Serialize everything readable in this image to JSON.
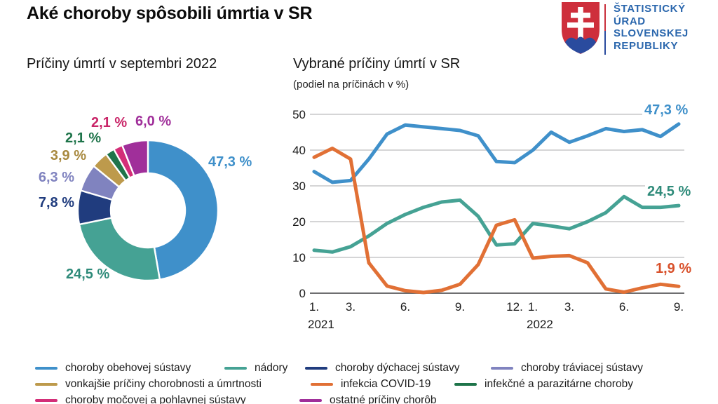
{
  "header": {
    "title": "Aké choroby spôsobili úmrtia v SR",
    "logo": {
      "lines": [
        "ŠTATISTICKÝ",
        "ÚRAD",
        "SLOVENSKEJ",
        "REPUBLIKY"
      ],
      "text_color": "#2B67AD",
      "shield_red": "#CE2F3C",
      "shield_blue": "#2A4B9E"
    }
  },
  "chart_data": [
    {
      "type": "pie",
      "subtype": "donut",
      "title": "Príčiny úmrtí v septembri 2022",
      "unit": "%",
      "slices": [
        {
          "label": "choroby obehovej sústavy",
          "value": 47.3,
          "display": "47,3 %",
          "color": "#3F90CA",
          "label_color": "#3F90CA"
        },
        {
          "label": "nádory",
          "value": 24.5,
          "display": "24,5 %",
          "color": "#45A294",
          "label_color": "#2F8B7A"
        },
        {
          "label": "choroby dýchacej sústavy",
          "value": 7.8,
          "display": "7,8 %",
          "color": "#203C7E",
          "label_color": "#203C7E"
        },
        {
          "label": "choroby tráviacej sústavy",
          "value": 6.3,
          "display": "6,3 %",
          "color": "#8083BF",
          "label_color": "#8083BF"
        },
        {
          "label": "vonkajšie príčiny chorobnosti a úmrtnosti",
          "value": 3.9,
          "display": "3,9 %",
          "color": "#BD9A4C",
          "label_color": "#A8893F"
        },
        {
          "label": "infekčné a parazitárne choroby",
          "value": 2.1,
          "display": "2,1 %",
          "color": "#1E744A",
          "label_color": "#1E744A"
        },
        {
          "label": "choroby močovej a pohlavnej sústavy",
          "value": 2.1,
          "display": "2,1 %",
          "color": "#D32E78",
          "label_color": "#C92568"
        },
        {
          "label": "ostatné príčiny chorôb",
          "value": 6.0,
          "display": "6,0 %",
          "color": "#A02F9A",
          "label_color": "#A02F9A"
        }
      ]
    },
    {
      "type": "line",
      "title": "Vybrané príčiny úmrtí v SR",
      "subtitle": "(podiel na príčinách v %)",
      "ylim": [
        0,
        50
      ],
      "yticks": [
        0,
        10,
        20,
        30,
        40,
        50
      ],
      "grid": true,
      "x": [
        "2021-01",
        "2021-02",
        "2021-03",
        "2021-04",
        "2021-05",
        "2021-06",
        "2021-07",
        "2021-08",
        "2021-09",
        "2021-10",
        "2021-11",
        "2021-12",
        "2022-01",
        "2022-02",
        "2022-03",
        "2022-04",
        "2022-05",
        "2022-06",
        "2022-07",
        "2022-08",
        "2022-09"
      ],
      "xticks": [
        {
          "index": 0,
          "label": "1."
        },
        {
          "index": 2,
          "label": "3."
        },
        {
          "index": 5,
          "label": "6."
        },
        {
          "index": 8,
          "label": "9."
        },
        {
          "index": 11,
          "label": "12."
        },
        {
          "index": 12,
          "label": "1."
        },
        {
          "index": 14,
          "label": "3."
        },
        {
          "index": 17,
          "label": "6."
        },
        {
          "index": 20,
          "label": "9."
        }
      ],
      "year_labels": [
        {
          "index": 0,
          "label": "2021"
        },
        {
          "index": 12,
          "label": "2022"
        }
      ],
      "series": [
        {
          "name": "choroby obehovej sústavy",
          "color": "#3F90CA",
          "end_label": "47,3 %",
          "end_label_color": "#3F90CA",
          "values": [
            34,
            31,
            31.5,
            37.5,
            44.5,
            47,
            46.5,
            46,
            45.5,
            44,
            36.8,
            36.5,
            40,
            45,
            42.2,
            44,
            46,
            45.2,
            45.7,
            43.8,
            47.3
          ]
        },
        {
          "name": "nádory",
          "color": "#45A294",
          "end_label": "24,5 %",
          "end_label_color": "#2F8B7A",
          "values": [
            12,
            11.5,
            13,
            16,
            19.5,
            22,
            24,
            25.5,
            26,
            21.5,
            13.5,
            13.8,
            19.5,
            18.8,
            18,
            20,
            22.5,
            27,
            24,
            24,
            24.5
          ]
        },
        {
          "name": "infekcia COVID-19",
          "color": "#E17035",
          "end_label": "1,9 %",
          "end_label_color": "#D8502A",
          "values": [
            38,
            40.5,
            37.5,
            8.5,
            2,
            0.7,
            0.2,
            0.8,
            2.5,
            8,
            19,
            20.5,
            9.8,
            10.3,
            10.5,
            8.5,
            1.2,
            0.3,
            1.5,
            2.5,
            1.9
          ]
        }
      ]
    }
  ],
  "legend": {
    "rows": [
      [
        {
          "label": "choroby obehovej sústavy",
          "color": "#3F90CA"
        },
        {
          "label": "nádory",
          "color": "#45A294"
        },
        {
          "label": "choroby dýchacej sústavy",
          "color": "#203C7E"
        },
        {
          "label": "choroby tráviacej sústavy",
          "color": "#8083BF"
        }
      ],
      [
        {
          "label": "vonkajšie príčiny chorobnosti a úmrtnosti",
          "color": "#BD9A4C"
        },
        {
          "label": "infekcia COVID-19",
          "color": "#E17035"
        },
        {
          "label": "infekčné a parazitárne choroby",
          "color": "#1E744A"
        }
      ],
      [
        {
          "label": "choroby močovej a pohlavnej sústavy",
          "color": "#D32E78"
        },
        {
          "label": "ostatné príčiny chorôb",
          "color": "#A02F9A"
        }
      ]
    ]
  }
}
